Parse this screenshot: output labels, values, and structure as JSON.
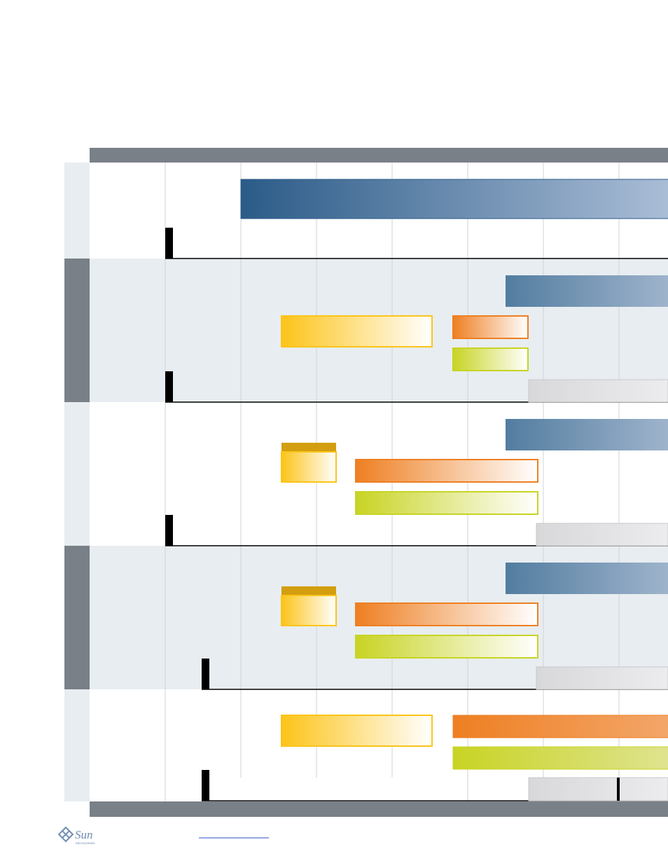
{
  "footer": {
    "logo": "Sun",
    "logo_sub": "microsystems"
  }
}
